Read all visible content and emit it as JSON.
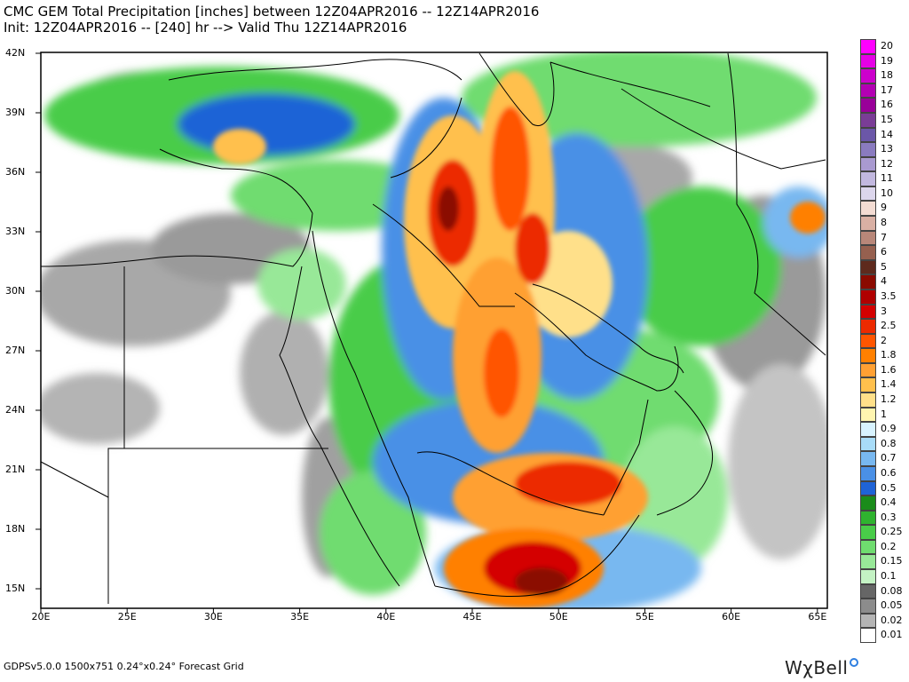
{
  "title_line1": "CMC GEM Total Precipitation [inches] between 12Z04APR2016 -- 12Z14APR2016",
  "title_line2": "Init: 12Z04APR2016 -- [240] hr --> Valid Thu 12Z14APR2016",
  "footer": "GDPSv5.0.0 1500x751 0.24°x0.24° Forecast Grid",
  "brand": "WχBell",
  "lat_labels": [
    "42N",
    "39N",
    "36N",
    "33N",
    "30N",
    "27N",
    "24N",
    "21N",
    "18N",
    "15N"
  ],
  "lon_labels": [
    "20E",
    "25E",
    "30E",
    "35E",
    "40E",
    "45E",
    "50E",
    "55E",
    "60E",
    "65E"
  ],
  "legend": [
    {
      "label": "20",
      "color": "#ff00ff"
    },
    {
      "label": "19",
      "color": "#e600e6"
    },
    {
      "label": "18",
      "color": "#cc00cc"
    },
    {
      "label": "17",
      "color": "#b300b3"
    },
    {
      "label": "16",
      "color": "#990099"
    },
    {
      "label": "15",
      "color": "#7a3d96"
    },
    {
      "label": "14",
      "color": "#6b57a8"
    },
    {
      "label": "13",
      "color": "#8a7bbf"
    },
    {
      "label": "12",
      "color": "#a99ad0"
    },
    {
      "label": "11",
      "color": "#c2b8df"
    },
    {
      "label": "10",
      "color": "#dcd6ec"
    },
    {
      "label": "9",
      "color": "#f3dcd3"
    },
    {
      "label": "8",
      "color": "#d9b0a4"
    },
    {
      "label": "7",
      "color": "#b88779"
    },
    {
      "label": "6",
      "color": "#96604f"
    },
    {
      "label": "5",
      "color": "#5e2a1d"
    },
    {
      "label": "4",
      "color": "#8b0a00"
    },
    {
      "label": "3.5",
      "color": "#b00000"
    },
    {
      "label": "3",
      "color": "#d40000"
    },
    {
      "label": "2.5",
      "color": "#ec2a00"
    },
    {
      "label": "2",
      "color": "#ff5500"
    },
    {
      "label": "1.8",
      "color": "#ff8000"
    },
    {
      "label": "1.6",
      "color": "#ffa033"
    },
    {
      "label": "1.4",
      "color": "#ffc04d"
    },
    {
      "label": "1.2",
      "color": "#ffe08a"
    },
    {
      "label": "1",
      "color": "#fff5b0"
    },
    {
      "label": "0.9",
      "color": "#d8f3ff"
    },
    {
      "label": "0.8",
      "color": "#a8dcf8"
    },
    {
      "label": "0.7",
      "color": "#78b8f0"
    },
    {
      "label": "0.6",
      "color": "#4a90e6"
    },
    {
      "label": "0.5",
      "color": "#1f63d6"
    },
    {
      "label": "0.4",
      "color": "#1a8c1a"
    },
    {
      "label": "0.3",
      "color": "#2fb32f"
    },
    {
      "label": "0.25",
      "color": "#49cc49"
    },
    {
      "label": "0.2",
      "color": "#6fdc6f"
    },
    {
      "label": "0.15",
      "color": "#98e898"
    },
    {
      "label": "0.1",
      "color": "#c4f2c4"
    },
    {
      "label": "0.08",
      "color": "#666666"
    },
    {
      "label": "0.05",
      "color": "#8c8c8c"
    },
    {
      "label": "0.02",
      "color": "#b4b4b4"
    },
    {
      "label": "0.01",
      "color": "#ffffff"
    }
  ]
}
